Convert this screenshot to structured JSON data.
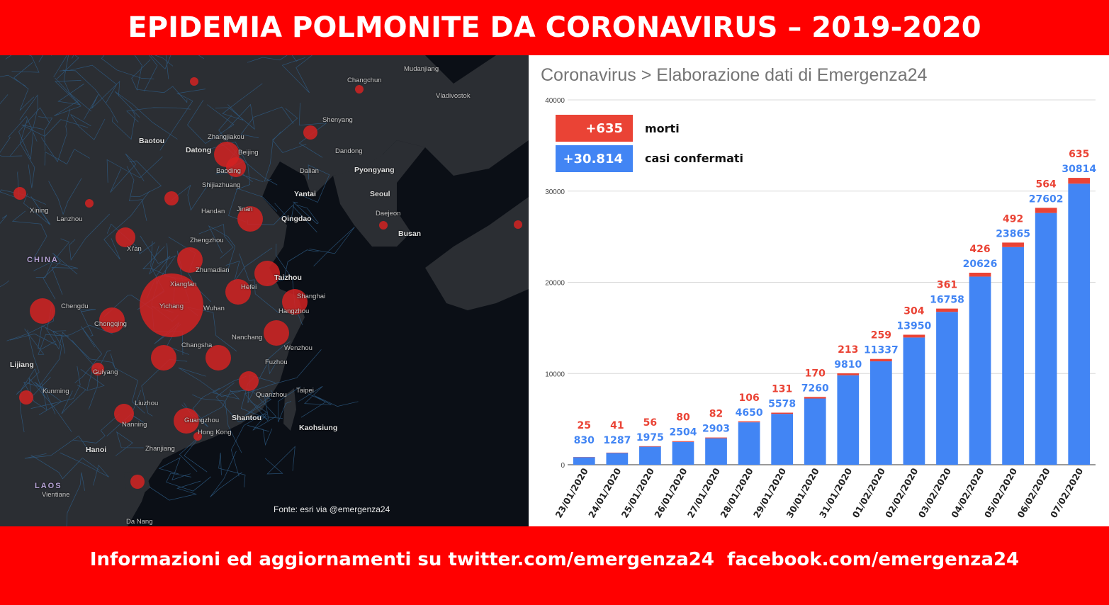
{
  "header": {
    "title": "EPIDEMIA POLMONITE DA CORONAVIRUS – 2019-2020"
  },
  "footer": {
    "text": "Informazioni ed aggiornamenti su twitter.com/emergenza24  facebook.com/emergenza24"
  },
  "map": {
    "source": "Fonte: esri via @emergenza24",
    "background_color": "#0b0f16",
    "bubble_color": "#d32222",
    "labels": [
      {
        "text": "Changchun",
        "big": false
      },
      {
        "text": "Vladivostok",
        "big": false
      },
      {
        "text": "Mudanjiang",
        "big": false
      },
      {
        "text": "Shenyang",
        "big": false
      },
      {
        "text": "Baotou",
        "big": true
      },
      {
        "text": "Datong",
        "big": true
      },
      {
        "text": "Zhangjiakou",
        "big": false
      },
      {
        "text": "Beijing",
        "big": false
      },
      {
        "text": "Baoding",
        "big": false
      },
      {
        "text": "Dalian",
        "big": false
      },
      {
        "text": "Dandong",
        "big": false
      },
      {
        "text": "Pyongyang",
        "big": true
      },
      {
        "text": "Shijiazhuang",
        "big": false
      },
      {
        "text": "Yantai",
        "big": true
      },
      {
        "text": "Seoul",
        "big": true
      },
      {
        "text": "Xining",
        "big": false
      },
      {
        "text": "Lanzhou",
        "big": false
      },
      {
        "text": "Handan",
        "big": false
      },
      {
        "text": "Jinan",
        "big": false
      },
      {
        "text": "Qingdao",
        "big": true
      },
      {
        "text": "Daejeon",
        "big": false
      },
      {
        "text": "Busan",
        "big": true
      },
      {
        "text": "CHINA",
        "country": true
      },
      {
        "text": "Xi'an",
        "big": false
      },
      {
        "text": "Zhengzhou",
        "big": false
      },
      {
        "text": "Zhumadian",
        "big": false
      },
      {
        "text": "Xiangfan",
        "big": false
      },
      {
        "text": "Taizhou",
        "big": true
      },
      {
        "text": "Hefei",
        "big": false
      },
      {
        "text": "Shanghai",
        "big": false
      },
      {
        "text": "Chengdu",
        "big": false
      },
      {
        "text": "Yichang",
        "big": false
      },
      {
        "text": "Wuhan",
        "big": false
      },
      {
        "text": "Hangzhou",
        "big": false
      },
      {
        "text": "Chongqing",
        "big": false
      },
      {
        "text": "Nanchang",
        "big": false
      },
      {
        "text": "Changsha",
        "big": false
      },
      {
        "text": "Wenzhou",
        "big": false
      },
      {
        "text": "Lijiang",
        "big": true
      },
      {
        "text": "Guiyang",
        "big": false
      },
      {
        "text": "Fuzhou",
        "big": false
      },
      {
        "text": "Kunming",
        "big": false
      },
      {
        "text": "Quanzhou",
        "big": false
      },
      {
        "text": "Taipei",
        "big": false
      },
      {
        "text": "Liuzhou",
        "big": false
      },
      {
        "text": "Nanning",
        "big": false
      },
      {
        "text": "Guangzhou",
        "big": false
      },
      {
        "text": "Shantou",
        "big": true
      },
      {
        "text": "Hong Kong",
        "big": false
      },
      {
        "text": "Kaohsiung",
        "big": true
      },
      {
        "text": "Hanoi",
        "big": true
      },
      {
        "text": "Zhanjiang",
        "big": false
      },
      {
        "text": "LAOS",
        "country": true
      },
      {
        "text": "Vientiane",
        "big": false
      },
      {
        "text": "Da Nang",
        "big": false
      }
    ]
  },
  "chart_data": {
    "type": "bar",
    "stacked": true,
    "title": "Coronavirus > Elaborazione dati di Emergenza24",
    "xlabel": "",
    "ylabel": "",
    "ylim": [
      0,
      40000
    ],
    "yticks": [
      0,
      10000,
      20000,
      30000,
      40000
    ],
    "grid": true,
    "categories": [
      "23/01/2020",
      "24/01/2020",
      "25/01/2020",
      "26/01/2020",
      "27/01/2020",
      "28/01/2020",
      "29/01/2020",
      "30/01/2020",
      "31/01/2020",
      "01/02/2020",
      "02/02/2020",
      "03/02/2020",
      "04/02/2020",
      "05/02/2020",
      "06/02/2020",
      "07/02/2020"
    ],
    "series": [
      {
        "name": "casi confermati",
        "color": "#4285f4",
        "values": [
          830,
          1287,
          1975,
          2504,
          2903,
          4650,
          5578,
          7260,
          9810,
          11337,
          13950,
          16758,
          20626,
          23865,
          27602,
          30814
        ]
      },
      {
        "name": "morti",
        "color": "#ea4335",
        "values": [
          25,
          41,
          56,
          80,
          82,
          106,
          131,
          170,
          213,
          259,
          304,
          361,
          426,
          492,
          564,
          635
        ]
      }
    ],
    "legend": [
      {
        "box": "+635",
        "label": "morti",
        "color": "#ea4335"
      },
      {
        "box": "+30.814",
        "label": "casi confermati",
        "color": "#4285f4"
      }
    ],
    "legend_position": "top-left"
  }
}
